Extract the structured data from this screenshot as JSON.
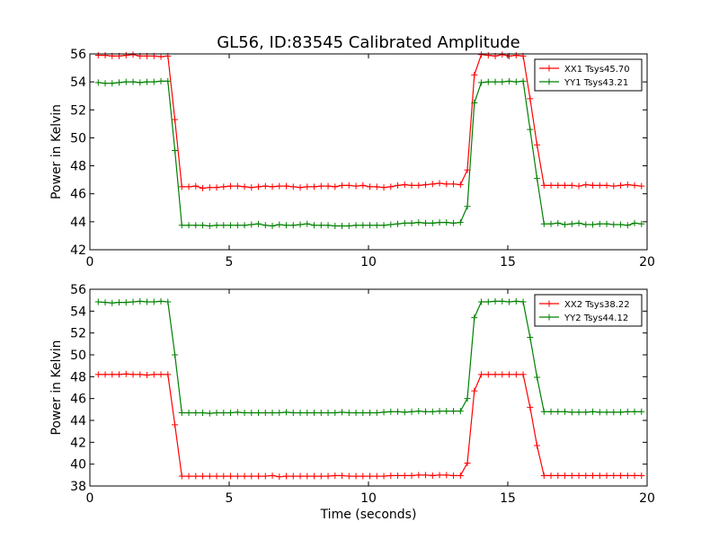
{
  "title": "GL56, ID:83545 Calibrated Amplitude",
  "chart_data": [
    {
      "type": "line",
      "xlabel": "",
      "ylabel": "Power in Kelvin",
      "xlim": [
        0,
        20
      ],
      "ylim": [
        42,
        56
      ],
      "xticks": [
        0,
        5,
        10,
        15,
        20
      ],
      "yticks": [
        42,
        44,
        46,
        48,
        50,
        52,
        54,
        56
      ],
      "xtick_labels": [
        "0",
        "5",
        "10",
        "15",
        "20"
      ],
      "ytick_labels": [
        "42",
        "44",
        "46",
        "48",
        "50",
        "52",
        "54",
        "56"
      ],
      "legend_position": "upper-right",
      "grid": false,
      "x": [
        0.3,
        0.55,
        0.8,
        1.05,
        1.3,
        1.55,
        1.8,
        2.05,
        2.3,
        2.55,
        2.8,
        3.05,
        3.3,
        3.55,
        3.8,
        4.05,
        4.3,
        4.55,
        4.8,
        5.05,
        5.3,
        5.55,
        5.8,
        6.05,
        6.3,
        6.55,
        6.8,
        7.05,
        7.3,
        7.55,
        7.8,
        8.05,
        8.3,
        8.55,
        8.8,
        9.05,
        9.3,
        9.55,
        9.8,
        10.05,
        10.3,
        10.55,
        10.8,
        11.05,
        11.3,
        11.55,
        11.8,
        12.05,
        12.3,
        12.55,
        12.8,
        13.05,
        13.3,
        13.55,
        13.8,
        14.05,
        14.3,
        14.55,
        14.8,
        15.05,
        15.3,
        15.55,
        15.8,
        16.05,
        16.3,
        16.55,
        16.8,
        17.05,
        17.3,
        17.55,
        17.8,
        18.05,
        18.3,
        18.55,
        18.8,
        19.05,
        19.3,
        19.55,
        19.8
      ],
      "series": [
        {
          "name": "XX1 Tsys45.70",
          "color": "#ff0000",
          "values": [
            55.9,
            55.9,
            55.85,
            55.85,
            55.9,
            55.95,
            55.85,
            55.85,
            55.85,
            55.8,
            55.85,
            51.3,
            46.5,
            46.5,
            46.55,
            46.4,
            46.45,
            46.45,
            46.5,
            46.55,
            46.55,
            46.5,
            46.45,
            46.5,
            46.55,
            46.5,
            46.55,
            46.55,
            46.5,
            46.45,
            46.5,
            46.5,
            46.55,
            46.55,
            46.5,
            46.6,
            46.6,
            46.55,
            46.6,
            46.5,
            46.5,
            46.45,
            46.5,
            46.6,
            46.65,
            46.6,
            46.6,
            46.65,
            46.7,
            46.75,
            46.7,
            46.7,
            46.65,
            47.7,
            54.5,
            55.95,
            55.9,
            55.85,
            55.95,
            55.85,
            55.9,
            55.85,
            52.8,
            49.5,
            46.6,
            46.6,
            46.6,
            46.6,
            46.6,
            46.55,
            46.65,
            46.6,
            46.6,
            46.6,
            46.55,
            46.6,
            46.65,
            46.6,
            46.55
          ]
        },
        {
          "name": "YY1 Tsys43.21",
          "color": "#008000",
          "values": [
            53.95,
            53.9,
            53.9,
            53.95,
            54.0,
            54.0,
            53.95,
            54.0,
            54.0,
            54.05,
            54.05,
            49.1,
            43.75,
            43.75,
            43.75,
            43.75,
            43.7,
            43.75,
            43.75,
            43.75,
            43.75,
            43.75,
            43.8,
            43.85,
            43.75,
            43.7,
            43.8,
            43.75,
            43.75,
            43.8,
            43.85,
            43.75,
            43.75,
            43.75,
            43.7,
            43.7,
            43.7,
            43.75,
            43.75,
            43.75,
            43.75,
            43.75,
            43.8,
            43.85,
            43.9,
            43.9,
            43.95,
            43.9,
            43.9,
            43.95,
            43.95,
            43.9,
            43.95,
            45.1,
            52.5,
            53.95,
            54.0,
            54.0,
            54.0,
            54.05,
            54.0,
            54.05,
            50.6,
            47.1,
            43.85,
            43.85,
            43.9,
            43.8,
            43.85,
            43.9,
            43.8,
            43.8,
            43.85,
            43.85,
            43.8,
            43.8,
            43.75,
            43.9,
            43.85
          ]
        }
      ]
    },
    {
      "type": "line",
      "xlabel": "Time (seconds)",
      "ylabel": "Power in Kelvin",
      "xlim": [
        0,
        20
      ],
      "ylim": [
        38,
        56
      ],
      "xticks": [
        0,
        5,
        10,
        15,
        20
      ],
      "yticks": [
        38,
        40,
        42,
        44,
        46,
        48,
        50,
        52,
        54,
        56
      ],
      "xtick_labels": [
        "0",
        "5",
        "10",
        "15",
        "20"
      ],
      "ytick_labels": [
        "38",
        "40",
        "42",
        "44",
        "46",
        "48",
        "50",
        "52",
        "54",
        "56"
      ],
      "legend_position": "upper-right",
      "grid": false,
      "x": [
        0.3,
        0.55,
        0.8,
        1.05,
        1.3,
        1.55,
        1.8,
        2.05,
        2.3,
        2.55,
        2.8,
        3.05,
        3.3,
        3.55,
        3.8,
        4.05,
        4.3,
        4.55,
        4.8,
        5.05,
        5.3,
        5.55,
        5.8,
        6.05,
        6.3,
        6.55,
        6.8,
        7.05,
        7.3,
        7.55,
        7.8,
        8.05,
        8.3,
        8.55,
        8.8,
        9.05,
        9.3,
        9.55,
        9.8,
        10.05,
        10.3,
        10.55,
        10.8,
        11.05,
        11.3,
        11.55,
        11.8,
        12.05,
        12.3,
        12.55,
        12.8,
        13.05,
        13.3,
        13.55,
        13.8,
        14.05,
        14.3,
        14.55,
        14.8,
        15.05,
        15.3,
        15.55,
        15.8,
        16.05,
        16.3,
        16.55,
        16.8,
        17.05,
        17.3,
        17.55,
        17.8,
        18.05,
        18.3,
        18.55,
        18.8,
        19.05,
        19.3,
        19.55,
        19.8
      ],
      "series": [
        {
          "name": "XX2 Tsys38.22",
          "color": "#ff0000",
          "values": [
            48.2,
            48.2,
            48.2,
            48.2,
            48.25,
            48.2,
            48.2,
            48.15,
            48.2,
            48.2,
            48.2,
            43.6,
            38.9,
            38.9,
            38.9,
            38.9,
            38.9,
            38.9,
            38.9,
            38.9,
            38.9,
            38.9,
            38.9,
            38.9,
            38.9,
            38.95,
            38.85,
            38.9,
            38.9,
            38.9,
            38.9,
            38.9,
            38.9,
            38.9,
            38.95,
            38.95,
            38.9,
            38.9,
            38.9,
            38.9,
            38.9,
            38.9,
            38.95,
            38.95,
            38.95,
            38.95,
            39.0,
            39.0,
            38.95,
            39.0,
            39.0,
            38.95,
            38.95,
            40.1,
            46.7,
            48.2,
            48.2,
            48.2,
            48.2,
            48.2,
            48.2,
            48.2,
            45.2,
            41.7,
            38.95,
            38.95,
            38.95,
            38.95,
            38.95,
            38.95,
            38.95,
            38.95,
            38.95,
            38.95,
            38.95,
            38.95,
            38.95,
            38.95,
            38.95
          ]
        },
        {
          "name": "YY2 Tsys44.12",
          "color": "#008000",
          "values": [
            54.85,
            54.8,
            54.75,
            54.8,
            54.8,
            54.85,
            54.9,
            54.85,
            54.85,
            54.9,
            54.85,
            50.0,
            44.7,
            44.7,
            44.7,
            44.7,
            44.65,
            44.7,
            44.7,
            44.7,
            44.75,
            44.7,
            44.7,
            44.7,
            44.7,
            44.7,
            44.7,
            44.75,
            44.7,
            44.7,
            44.7,
            44.7,
            44.7,
            44.7,
            44.7,
            44.75,
            44.7,
            44.7,
            44.7,
            44.7,
            44.7,
            44.75,
            44.8,
            44.8,
            44.75,
            44.8,
            44.85,
            44.8,
            44.8,
            44.85,
            44.85,
            44.85,
            44.85,
            46.0,
            53.4,
            54.85,
            54.85,
            54.9,
            54.9,
            54.85,
            54.9,
            54.85,
            51.6,
            47.95,
            44.8,
            44.8,
            44.8,
            44.8,
            44.75,
            44.75,
            44.75,
            44.8,
            44.75,
            44.75,
            44.75,
            44.75,
            44.8,
            44.8,
            44.8
          ]
        }
      ]
    }
  ]
}
